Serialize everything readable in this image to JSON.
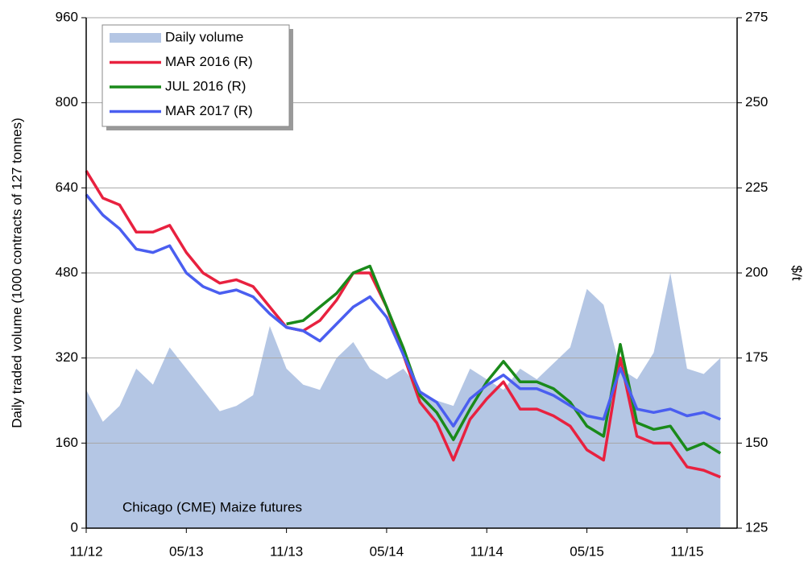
{
  "chart_data": {
    "type": "line",
    "annotation": "Chicago (CME)  Maize futures",
    "y_label": "Daily  traded volume (1000 contracts of 127 tonnes)",
    "y2_label": "$/t",
    "x": [
      "2012-11",
      "2012-12",
      "2013-01",
      "2013-02",
      "2013-03",
      "2013-04",
      "2013-05",
      "2013-06",
      "2013-07",
      "2013-08",
      "2013-09",
      "2013-10",
      "2013-11",
      "2013-12",
      "2014-01",
      "2014-02",
      "2014-03",
      "2014-04",
      "2014-05",
      "2014-06",
      "2014-07",
      "2014-08",
      "2014-09",
      "2014-10",
      "2014-11",
      "2014-12",
      "2015-01",
      "2015-02",
      "2015-03",
      "2015-04",
      "2015-05",
      "2015-06",
      "2015-07",
      "2015-08",
      "2015-09",
      "2015-10",
      "2015-11",
      "2015-12",
      "2016-01"
    ],
    "xlim": [
      "2012-11",
      "2016-02"
    ],
    "xticks": [
      {
        "value": "2012-11",
        "label": "11/12"
      },
      {
        "value": "2013-05",
        "label": "05/13"
      },
      {
        "value": "2013-11",
        "label": "11/13"
      },
      {
        "value": "2014-05",
        "label": "05/14"
      },
      {
        "value": "2014-11",
        "label": "11/14"
      },
      {
        "value": "2015-05",
        "label": "05/15"
      },
      {
        "value": "2015-11",
        "label": "11/15"
      }
    ],
    "ylim": [
      0,
      960
    ],
    "yticks": [
      0,
      160,
      320,
      480,
      640,
      800,
      960
    ],
    "y2lim": [
      125,
      275
    ],
    "y2ticks": [
      125,
      150,
      175,
      200,
      225,
      250,
      275
    ],
    "grid": true,
    "legend": "upper left",
    "series": [
      {
        "name": "Daily volume",
        "type": "area",
        "color": "#b4c6e4",
        "values": [
          260,
          200,
          230,
          300,
          270,
          340,
          300,
          260,
          220,
          230,
          250,
          380,
          300,
          270,
          260,
          320,
          350,
          300,
          280,
          300,
          260,
          240,
          230,
          300,
          280,
          260,
          300,
          280,
          310,
          340,
          450,
          420,
          300,
          280,
          330,
          480,
          300,
          290,
          320
        ]
      },
      {
        "name": "MAR 2016 (R)",
        "axis": "y2",
        "color": "#e8213f",
        "values": [
          230,
          222,
          220,
          212,
          212,
          214,
          206,
          200,
          197,
          198,
          196,
          190,
          184,
          183,
          186,
          192,
          200,
          200,
          190,
          176,
          162,
          156,
          145,
          157,
          163,
          168,
          160,
          160,
          158,
          155,
          148,
          145,
          175,
          152,
          150,
          150,
          143,
          142,
          140
        ]
      },
      {
        "name": "JUL 2016 (R)",
        "axis": "y2",
        "color": "#1a8a1a",
        "values": [
          null,
          null,
          null,
          null,
          null,
          null,
          null,
          null,
          null,
          null,
          null,
          null,
          185,
          186,
          190,
          194,
          200,
          202,
          190,
          178,
          164,
          159,
          151,
          160,
          168,
          174,
          168,
          168,
          166,
          162,
          155,
          152,
          179,
          156,
          154,
          155,
          148,
          150,
          147
        ]
      },
      {
        "name": "MAR 2017 (R)",
        "axis": "y2",
        "color": "#4a5ef0",
        "values": [
          223,
          217,
          213,
          207,
          206,
          208,
          200,
          196,
          194,
          195,
          193,
          188,
          184,
          183,
          180,
          185,
          190,
          193,
          187,
          176,
          165,
          162,
          155,
          163,
          167,
          170,
          166,
          166,
          164,
          161,
          158,
          157,
          172,
          160,
          159,
          160,
          158,
          159,
          157
        ]
      }
    ]
  }
}
